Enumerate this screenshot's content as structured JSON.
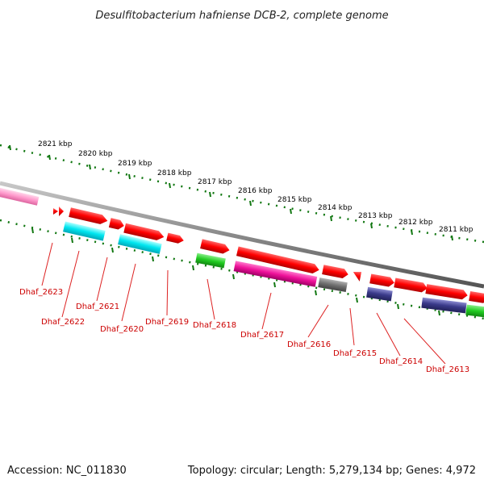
{
  "title": "Desulfitobacterium hafniense DCB-2, complete genome",
  "footer": {
    "accession": "Accession: NC_011830",
    "summary": "Topology: circular; Length: 5,279,134 bp; Genes: 4,972"
  },
  "scale_labels": [
    "2821 kbp",
    "2820 kbp",
    "2819 kbp",
    "2818 kbp",
    "2817 kbp",
    "2816 kbp",
    "2815 kbp",
    "2814 kbp",
    "2813 kbp",
    "2812 kbp",
    "2811 kbp"
  ],
  "gene_labels": [
    "Dhaf_2623",
    "Dhaf_2622",
    "Dhaf_2621",
    "Dhaf_2620",
    "Dhaf_2619",
    "Dhaf_2618",
    "Dhaf_2617",
    "Dhaf_2616",
    "Dhaf_2615",
    "Dhaf_2614",
    "Dhaf_2613"
  ],
  "colors": {
    "forward_red": "#ff0000",
    "cyan": "#00e6f0",
    "green": "#22cc22",
    "magenta": "#ee1199",
    "gray": "#707070",
    "navy": "#3a3a8a",
    "pink": "#ff99cc",
    "axis": "#8a8a8a",
    "ticks": "#117711",
    "label_red": "#cc0000"
  }
}
